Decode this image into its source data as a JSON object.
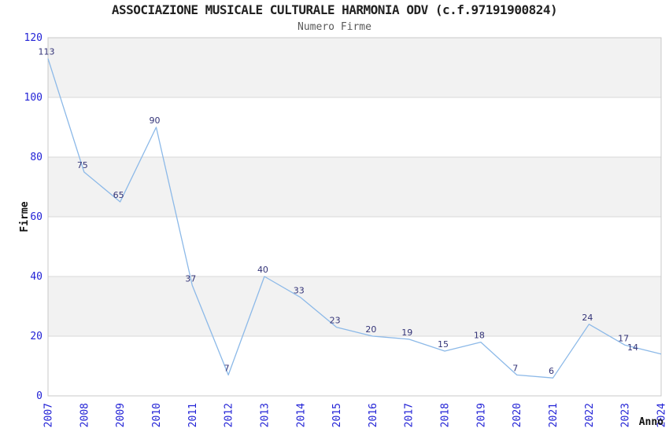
{
  "chart_data": {
    "type": "line",
    "title": "ASSOCIAZIONE MUSICALE CULTURALE HARMONIA ODV (c.f.97191900824)",
    "subtitle": "Numero Firme",
    "xlabel": "Anno",
    "ylabel": "Firme",
    "categories": [
      "2007",
      "2008",
      "2009",
      "2010",
      "2011",
      "2012",
      "2013",
      "2014",
      "2015",
      "2016",
      "2017",
      "2018",
      "2019",
      "2020",
      "2021",
      "2022",
      "2023",
      "2024"
    ],
    "values": [
      113,
      75,
      65,
      90,
      37,
      7,
      40,
      33,
      23,
      20,
      19,
      15,
      18,
      7,
      6,
      24,
      17,
      14
    ],
    "ylim": [
      0,
      120
    ],
    "ytick_step": 20,
    "yticks": [
      0,
      20,
      40,
      60,
      80,
      100,
      120
    ],
    "grid": "horizontal",
    "bands": "alternating",
    "legend": "none",
    "point_labels": true,
    "colors": {
      "line": "#8cb9e8",
      "band": "#f2f2f2",
      "grid": "#d8d8d8",
      "frame": "#c8c8c8",
      "tick_label": "#2222d6",
      "data_label": "#333377",
      "title": "#222222",
      "subtitle": "#595959",
      "axis_title": "#111111",
      "background": "#ffffff"
    }
  }
}
